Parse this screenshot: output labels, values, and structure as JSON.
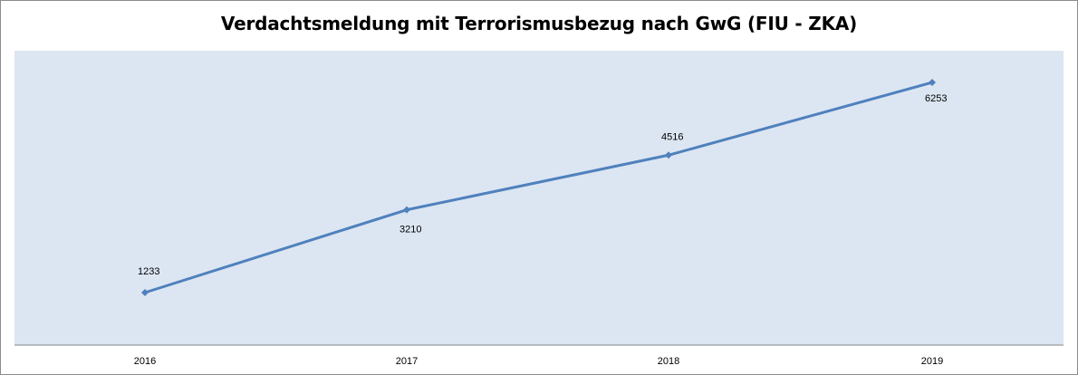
{
  "chart_data": {
    "type": "line",
    "title": "Verdachtsmeldung mit Terrorismusbezug nach GwG (FIU - ZKA)",
    "categories": [
      "2016",
      "2017",
      "2018",
      "2019"
    ],
    "series": [
      {
        "values": [
          1233,
          3210,
          4516,
          6253
        ],
        "data_labels": [
          "1233",
          "3210",
          "4516",
          "6253"
        ],
        "color": "#4f81bd"
      }
    ],
    "xlabel": "",
    "ylabel": "",
    "ylim": [
      0,
      7000
    ],
    "grid": false,
    "legend": "none",
    "plot_area_color": "#dce6f2",
    "marker": "diamond"
  }
}
